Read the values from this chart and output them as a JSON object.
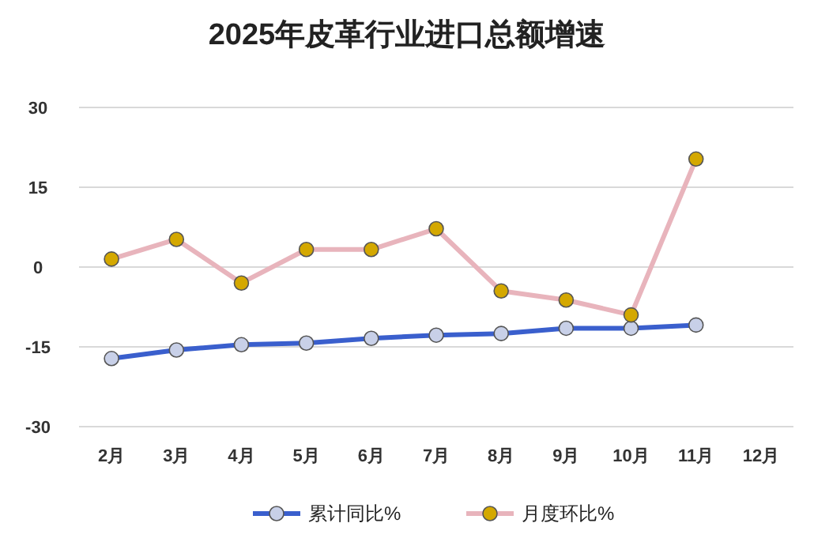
{
  "chart_data": {
    "type": "line",
    "title": "2025年皮革行业进口总额增速",
    "categories": [
      "2月",
      "3月",
      "4月",
      "5月",
      "6月",
      "7月",
      "8月",
      "9月",
      "10月",
      "11月",
      "12月"
    ],
    "series": [
      {
        "name": "累计同比%",
        "color": "#3a5fcd",
        "values": [
          -17.2,
          -15.6,
          -14.6,
          -14.3,
          -13.4,
          -12.8,
          -12.5,
          -11.5,
          -11.5,
          -10.9,
          null
        ]
      },
      {
        "name": "月度环比%",
        "color": "#e8b4bc",
        "values": [
          1.5,
          5.2,
          -3.0,
          3.3,
          3.3,
          7.2,
          -4.5,
          -6.2,
          -9.0,
          20.3,
          null
        ]
      }
    ],
    "ylim": [
      -30,
      30
    ],
    "yticks": [
      -30,
      -15,
      0,
      15,
      30
    ],
    "grid": "y",
    "legend": "bottom",
    "marker": "circle",
    "line_style": "solid"
  }
}
